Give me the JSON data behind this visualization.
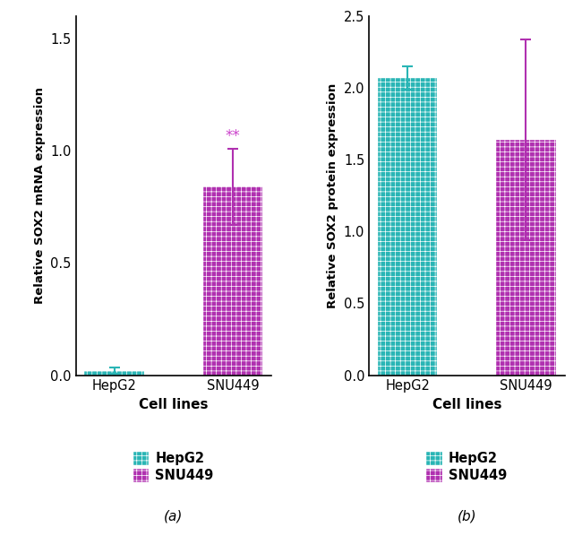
{
  "panel_a": {
    "categories": [
      "HepG2",
      "SNU449"
    ],
    "values": [
      0.02,
      0.84
    ],
    "errors": [
      0.015,
      0.17
    ],
    "colors": [
      "#29b5b5",
      "#b030b0"
    ],
    "ylabel": "Relative SOX2 mRNA expression",
    "xlabel": "Cell lines",
    "ylim": [
      0,
      1.6
    ],
    "yticks": [
      0.0,
      0.5,
      1.0,
      1.5
    ],
    "significance": {
      "bar_idx": 1,
      "text": "**",
      "color": "#cc44cc"
    },
    "legend_labels": [
      "HepG2",
      "SNU449"
    ],
    "legend_colors": [
      "#29b5b5",
      "#b030b0"
    ],
    "subtitle": "(a)"
  },
  "panel_b": {
    "categories": [
      "HepG2",
      "SNU449"
    ],
    "values": [
      2.07,
      1.64
    ],
    "errors": [
      0.08,
      0.7
    ],
    "colors": [
      "#29b5b5",
      "#b030b0"
    ],
    "ylabel": "Relative SOX2 protein expression",
    "xlabel": "Cell lines",
    "ylim": [
      0,
      2.5
    ],
    "yticks": [
      0.0,
      0.5,
      1.0,
      1.5,
      2.0,
      2.5
    ],
    "legend_labels": [
      "HepG2",
      "SNU449"
    ],
    "legend_colors": [
      "#29b5b5",
      "#b030b0"
    ],
    "subtitle": "(b)"
  },
  "bar_width": 0.5,
  "hatch_pattern": "++",
  "background_color": "#ffffff"
}
